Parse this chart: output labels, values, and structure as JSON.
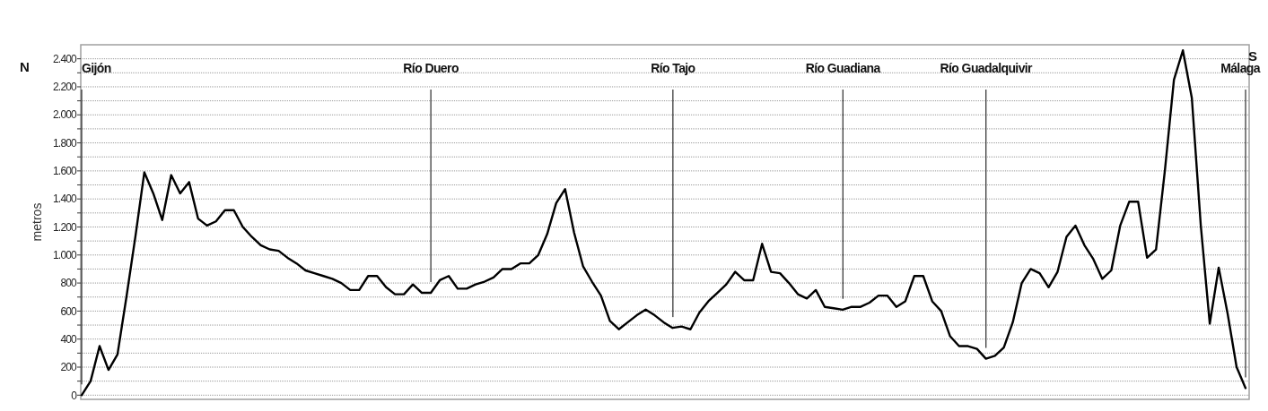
{
  "chart_data": {
    "type": "line",
    "ylabel": "metros",
    "annotations": [
      "N",
      "S",
      "Gijón",
      "Río Duero",
      "Río Tajo",
      "Río Guadiana",
      "Río Guadalquivir",
      "Málaga"
    ],
    "categories": [
      null,
      null,
      null,
      null,
      null,
      null,
      null,
      null,
      null,
      null,
      null,
      null,
      null,
      null,
      null,
      null,
      null,
      null,
      null,
      null,
      null,
      null,
      null,
      null,
      null,
      null,
      null,
      null,
      null,
      null,
      null,
      null,
      null,
      null,
      null,
      null,
      null,
      null,
      null,
      null,
      null,
      null,
      null,
      null,
      null,
      null,
      null,
      null,
      null,
      null,
      null,
      null,
      null,
      null,
      null,
      null,
      null,
      null,
      null,
      null,
      null,
      null,
      null,
      null,
      null,
      null,
      null,
      null,
      null,
      null,
      null,
      null,
      null,
      null,
      null,
      null,
      null,
      null,
      null,
      null,
      null,
      null,
      null,
      null,
      null,
      null,
      null,
      null,
      null,
      null,
      null,
      null,
      null,
      null,
      null,
      null,
      null,
      null,
      null,
      null,
      null,
      null,
      null,
      null,
      null,
      null,
      null,
      null,
      null,
      null,
      null,
      null,
      null,
      null,
      null,
      null,
      null,
      null,
      null,
      null,
      null,
      null,
      null,
      null,
      null,
      null,
      null,
      null,
      null,
      null,
      null
    ],
    "series": [
      {
        "color": "#000000",
        "values": [
          0,
          100,
          350,
          180,
          290,
          700,
          1130,
          1590,
          1440,
          1250,
          1570,
          1440,
          1520,
          1260,
          1210,
          1240,
          1320,
          1320,
          1200,
          1130,
          1070,
          1040,
          1030,
          980,
          940,
          890,
          870,
          850,
          830,
          800,
          750,
          750,
          850,
          850,
          770,
          720,
          720,
          790,
          730,
          730,
          820,
          850,
          760,
          760,
          790,
          810,
          840,
          900,
          900,
          940,
          940,
          1000,
          1150,
          1370,
          1470,
          1160,
          920,
          810,
          710,
          530,
          470,
          520,
          570,
          610,
          570,
          520,
          480,
          490,
          470,
          590,
          670,
          730,
          790,
          880,
          820,
          820,
          1080,
          880,
          870,
          800,
          720,
          690,
          750,
          630,
          620,
          610,
          630,
          630,
          660,
          710,
          710,
          630,
          670,
          850,
          850,
          670,
          600,
          420,
          350,
          350,
          330,
          260,
          280,
          340,
          520,
          800,
          900,
          870,
          770,
          880,
          1130,
          1210,
          1070,
          970,
          830,
          890,
          1210,
          1380,
          1380,
          980,
          1040,
          1610,
          2250,
          2460,
          2120,
          1210,
          510,
          910,
          580,
          200,
          50
        ]
      }
    ],
    "ylim": [
      -30,
      2500
    ],
    "yticks": [
      {
        "value": 0,
        "label": "0"
      },
      {
        "value": 100,
        "label": null
      },
      {
        "value": 200,
        "label": "200"
      },
      {
        "value": 300,
        "label": null
      },
      {
        "value": 400,
        "label": "400"
      },
      {
        "value": 500,
        "label": null
      },
      {
        "value": 600,
        "label": "600"
      },
      {
        "value": 700,
        "label": null
      },
      {
        "value": 800,
        "label": "800"
      },
      {
        "value": 900,
        "label": null
      },
      {
        "value": 1000,
        "label": "1.000"
      },
      {
        "value": 1100,
        "label": null
      },
      {
        "value": 1200,
        "label": "1.200"
      },
      {
        "value": 1300,
        "label": null
      },
      {
        "value": 1400,
        "label": "1.400"
      },
      {
        "value": 1500,
        "label": null
      },
      {
        "value": 1600,
        "label": "1.600"
      },
      {
        "value": 1700,
        "label": null
      },
      {
        "value": 1800,
        "label": "1.800"
      },
      {
        "value": 1900,
        "label": null
      },
      {
        "value": 2000,
        "label": "2.000"
      },
      {
        "value": 2100,
        "label": null
      },
      {
        "value": 2200,
        "label": "2.200"
      },
      {
        "value": 2300,
        "label": null
      },
      {
        "value": 2400,
        "label": "2.400"
      }
    ],
    "tick_labels": "y",
    "grid": "y",
    "line_style": "solid",
    "marker": "none"
  }
}
